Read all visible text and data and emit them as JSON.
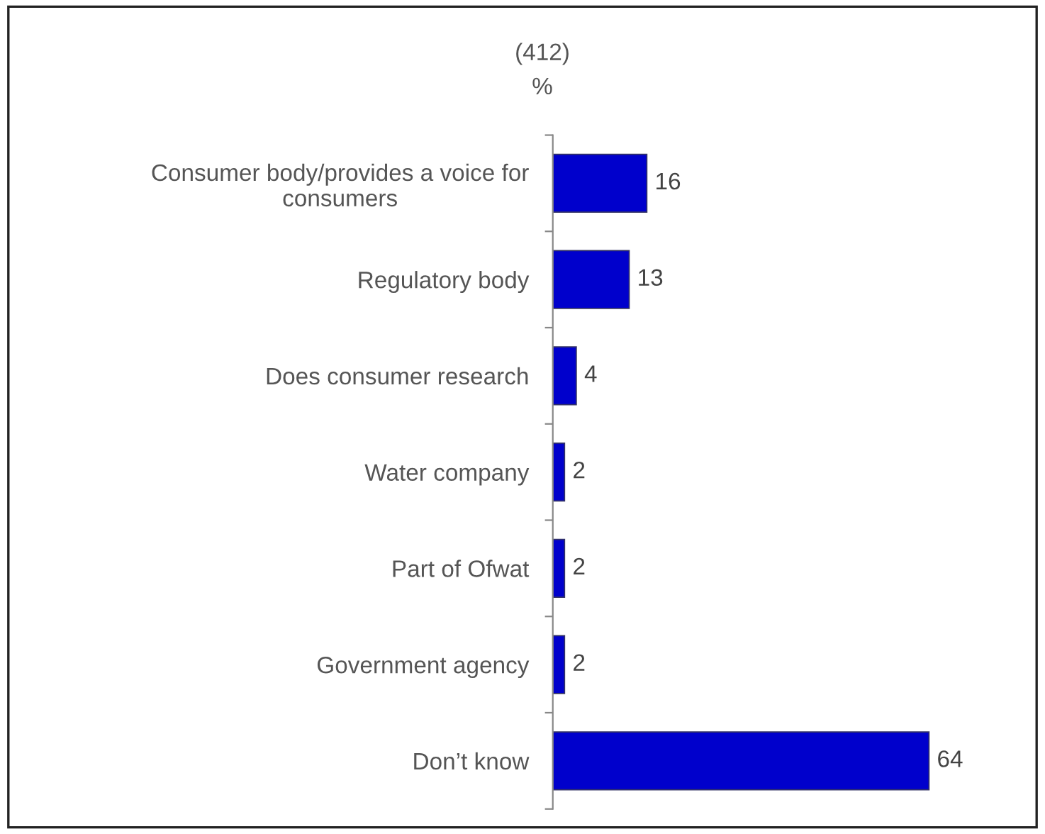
{
  "chart_data": {
    "type": "bar",
    "orientation": "horizontal",
    "title": "(412)",
    "subtitle": "%",
    "categories": [
      "Consumer body/provides a voice for\nconsumers",
      "Regulatory body",
      "Does consumer research",
      "Water company",
      "Part of Ofwat",
      "Government agency",
      "Don’t know"
    ],
    "values": [
      16,
      13,
      4,
      2,
      2,
      2,
      64
    ],
    "color": "#0000cc",
    "data_labels": true,
    "grid": false,
    "legend": false
  }
}
